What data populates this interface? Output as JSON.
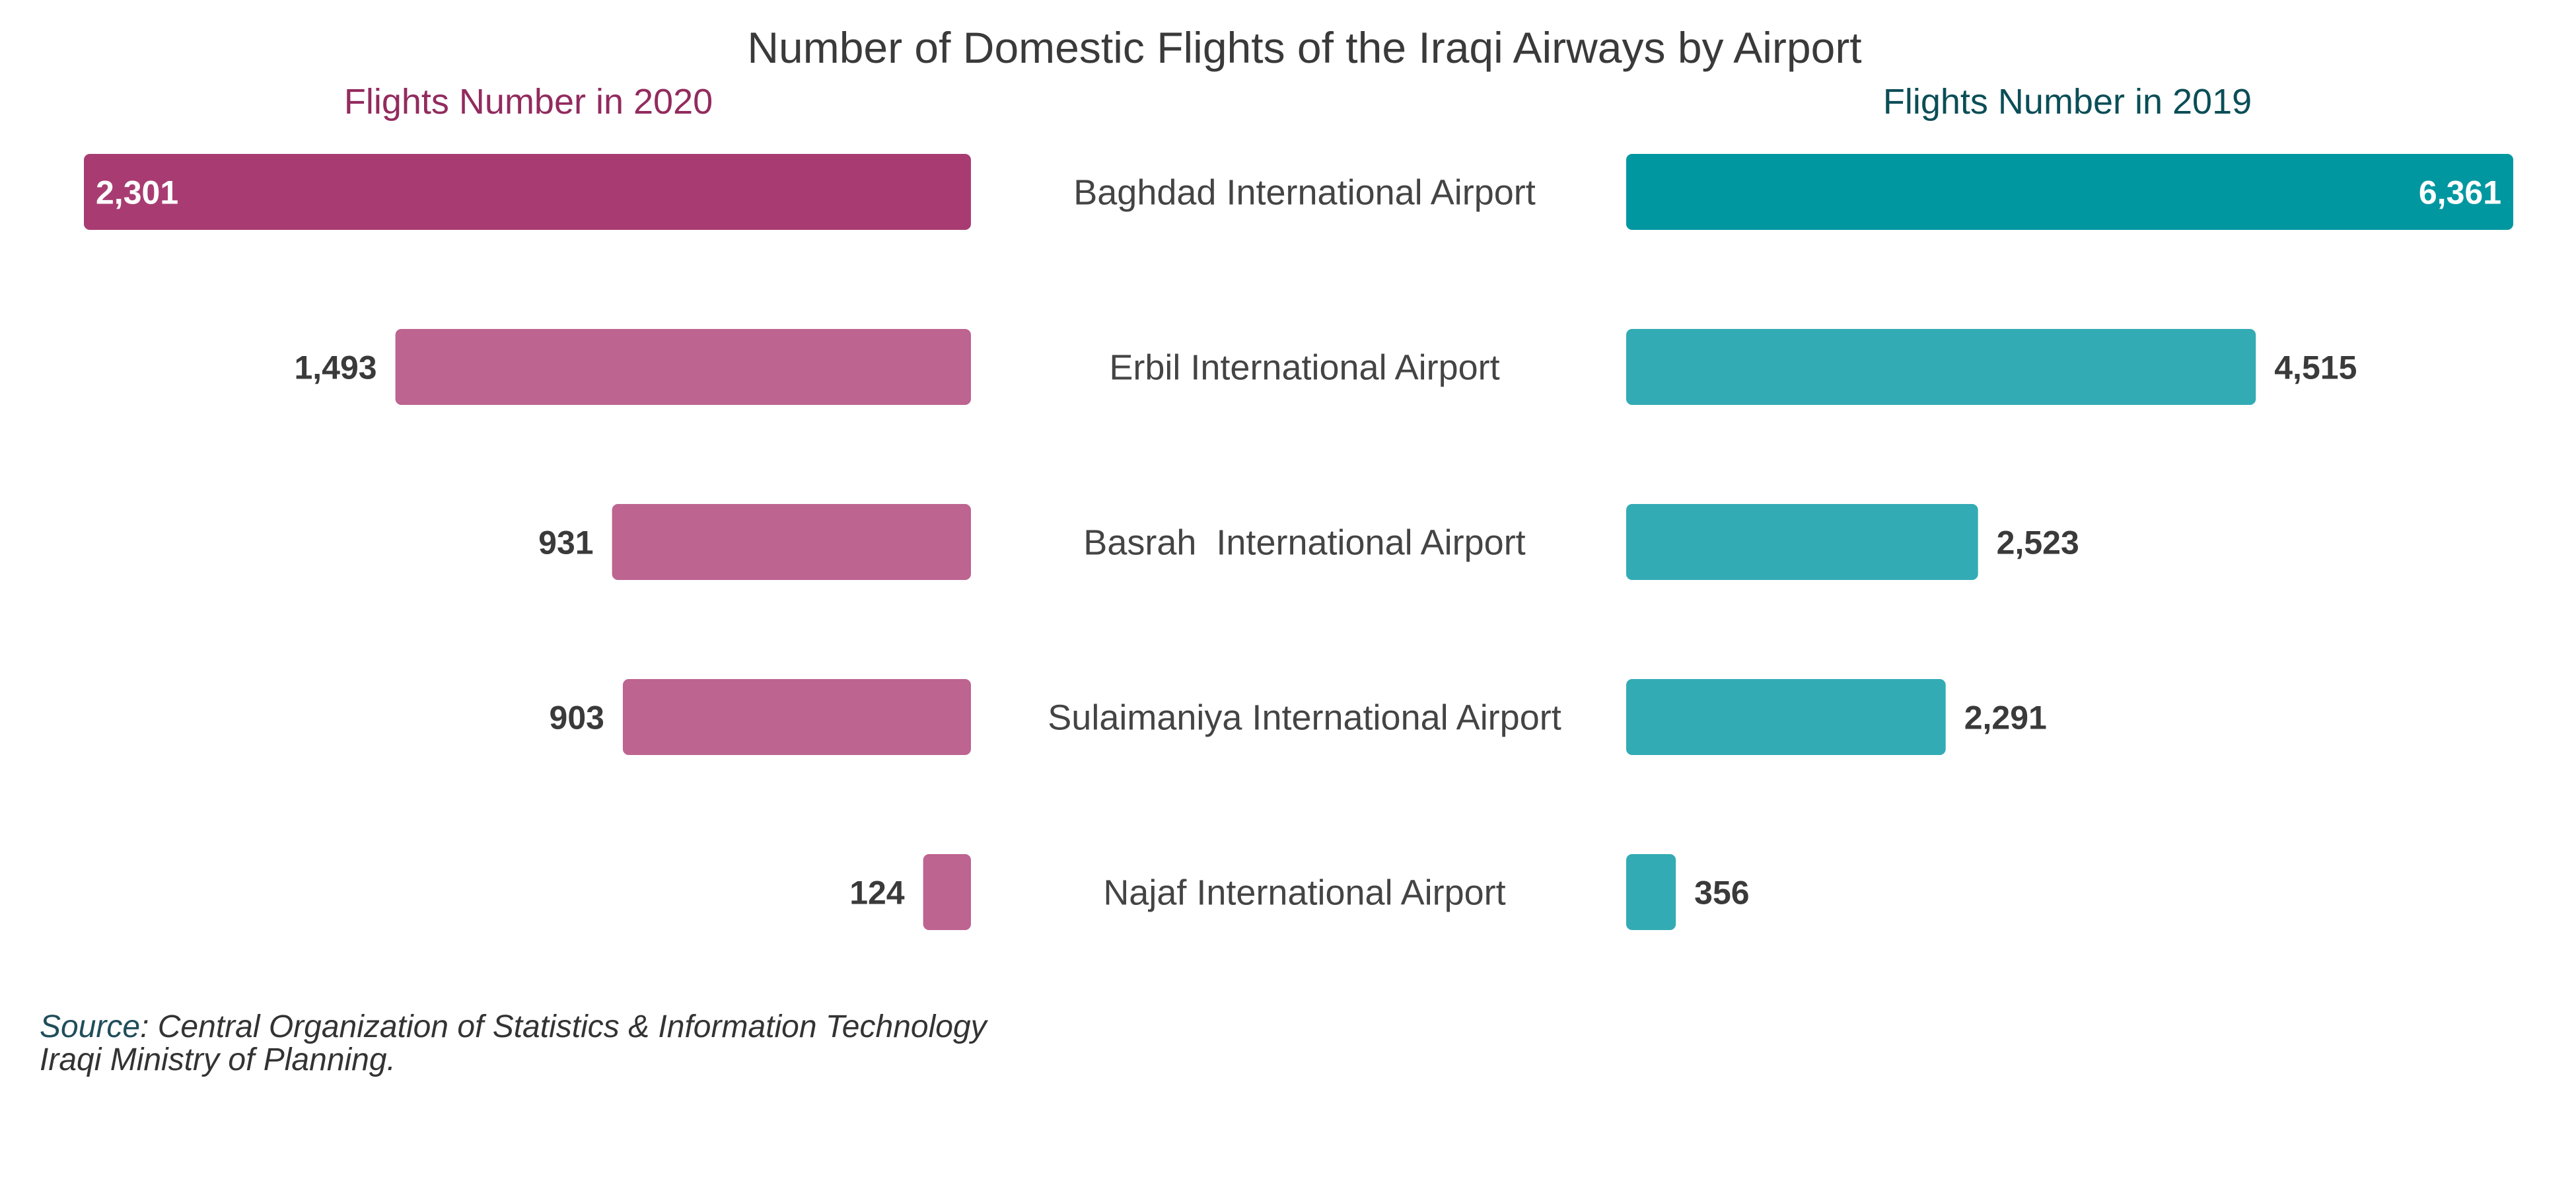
{
  "chart_data": {
    "type": "bar",
    "title": "Number of Domestic Flights of the Iraqi Airways by Airport",
    "categories": [
      "Baghdad International Airport",
      "Erbil International Airport",
      "Basrah  International Airport",
      "Sulaimaniya International Airport",
      "Najaf International Airport"
    ],
    "series": [
      {
        "name": "Flights Number in 2020",
        "values": [
          2301,
          1493,
          931,
          903,
          124
        ],
        "labels": [
          "2,301",
          "1,493",
          "931",
          "903",
          "124"
        ],
        "color": "#bd6490",
        "highlight_color": "#a83c72",
        "title_color": "#922b5e"
      },
      {
        "name": "Flights Number in 2019",
        "values": [
          6361,
          4515,
          2523,
          2291,
          356
        ],
        "labels": [
          "6,361",
          "4,515",
          "2,523",
          "2,291",
          "356"
        ],
        "color": "#33abb4",
        "highlight_color": "#0097a1",
        "title_color": "#0b4e57"
      }
    ],
    "layout": "back-to-back horizontal bars, category labels in center",
    "highlighted_category": "Baghdad International Airport"
  },
  "source": {
    "key": "Source",
    "line1": ": Central Organization of Statistics & Information Technology",
    "line2": "Iraqi Ministry of Planning."
  }
}
